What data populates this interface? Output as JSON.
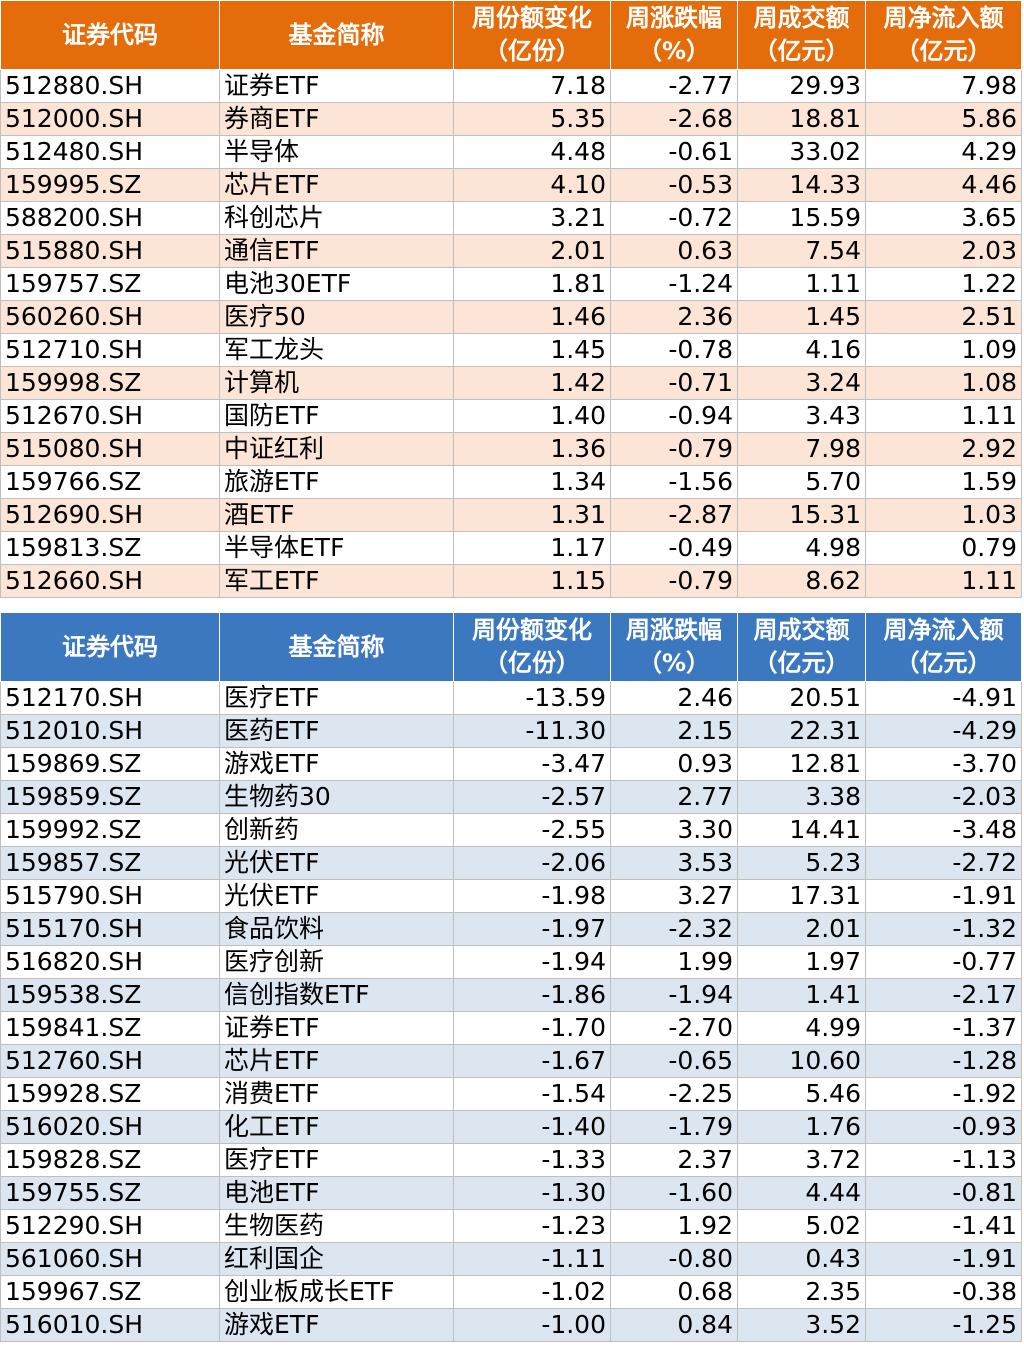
{
  "headers": [
    {
      "l1": "证券代码",
      "l2": ""
    },
    {
      "l1": "基金简称",
      "l2": ""
    },
    {
      "l1": "周份额变化",
      "l2": "（亿份）"
    },
    {
      "l1": "周涨跌幅",
      "l2": "（%）"
    },
    {
      "l1": "周成交额",
      "l2": "（亿元）"
    },
    {
      "l1": "周净流入额",
      "l2": "（亿元）"
    }
  ],
  "inflow_rows": [
    [
      "512880.SH",
      "证券ETF",
      "7.18",
      "-2.77",
      "29.93",
      "7.98"
    ],
    [
      "512000.SH",
      "券商ETF",
      "5.35",
      "-2.68",
      "18.81",
      "5.86"
    ],
    [
      "512480.SH",
      "半导体",
      "4.48",
      "-0.61",
      "33.02",
      "4.29"
    ],
    [
      "159995.SZ",
      "芯片ETF",
      "4.10",
      "-0.53",
      "14.33",
      "4.46"
    ],
    [
      "588200.SH",
      "科创芯片",
      "3.21",
      "-0.72",
      "15.59",
      "3.65"
    ],
    [
      "515880.SH",
      "通信ETF",
      "2.01",
      "0.63",
      "7.54",
      "2.03"
    ],
    [
      "159757.SZ",
      "电池30ETF",
      "1.81",
      "-1.24",
      "1.11",
      "1.22"
    ],
    [
      "560260.SH",
      "医疗50",
      "1.46",
      "2.36",
      "1.45",
      "2.51"
    ],
    [
      "512710.SH",
      "军工龙头",
      "1.45",
      "-0.78",
      "4.16",
      "1.09"
    ],
    [
      "159998.SZ",
      "计算机",
      "1.42",
      "-0.71",
      "3.24",
      "1.08"
    ],
    [
      "512670.SH",
      "国防ETF",
      "1.40",
      "-0.94",
      "3.43",
      "1.11"
    ],
    [
      "515080.SH",
      "中证红利",
      "1.36",
      "-0.79",
      "7.98",
      "2.92"
    ],
    [
      "159766.SZ",
      "旅游ETF",
      "1.34",
      "-1.56",
      "5.70",
      "1.59"
    ],
    [
      "512690.SH",
      "酒ETF",
      "1.31",
      "-2.87",
      "15.31",
      "1.03"
    ],
    [
      "159813.SZ",
      "半导体ETF",
      "1.17",
      "-0.49",
      "4.98",
      "0.79"
    ],
    [
      "512660.SH",
      "军工ETF",
      "1.15",
      "-0.79",
      "8.62",
      "1.11"
    ]
  ],
  "outflow_rows": [
    [
      "512170.SH",
      "医疗ETF",
      "-13.59",
      "2.46",
      "20.51",
      "-4.91"
    ],
    [
      "512010.SH",
      "医药ETF",
      "-11.30",
      "2.15",
      "22.31",
      "-4.29"
    ],
    [
      "159869.SZ",
      "游戏ETF",
      "-3.47",
      "0.93",
      "12.81",
      "-3.70"
    ],
    [
      "159859.SZ",
      "生物药30",
      "-2.57",
      "2.77",
      "3.38",
      "-2.03"
    ],
    [
      "159992.SZ",
      "创新药",
      "-2.55",
      "3.30",
      "14.41",
      "-3.48"
    ],
    [
      "159857.SZ",
      "光伏ETF",
      "-2.06",
      "3.53",
      "5.23",
      "-2.72"
    ],
    [
      "515790.SH",
      "光伏ETF",
      "-1.98",
      "3.27",
      "17.31",
      "-1.91"
    ],
    [
      "515170.SH",
      "食品饮料",
      "-1.97",
      "-2.32",
      "2.01",
      "-1.32"
    ],
    [
      "516820.SH",
      "医疗创新",
      "-1.94",
      "1.99",
      "1.97",
      "-0.77"
    ],
    [
      "159538.SZ",
      "信创指数ETF",
      "-1.86",
      "-1.94",
      "1.41",
      "-2.17"
    ],
    [
      "159841.SZ",
      "证券ETF",
      "-1.70",
      "-2.70",
      "4.99",
      "-1.37"
    ],
    [
      "512760.SH",
      "芯片ETF",
      "-1.67",
      "-0.65",
      "10.60",
      "-1.28"
    ],
    [
      "159928.SZ",
      "消费ETF",
      "-1.54",
      "-2.25",
      "5.46",
      "-1.92"
    ],
    [
      "516020.SH",
      "化工ETF",
      "-1.40",
      "-1.79",
      "1.76",
      "-0.93"
    ],
    [
      "159828.SZ",
      "医疗ETF",
      "-1.33",
      "2.37",
      "3.72",
      "-1.13"
    ],
    [
      "159755.SZ",
      "电池ETF",
      "-1.30",
      "-1.60",
      "4.44",
      "-0.81"
    ],
    [
      "512290.SH",
      "生物医药",
      "-1.23",
      "1.92",
      "5.02",
      "-1.41"
    ],
    [
      "561060.SH",
      "红利国企",
      "-1.11",
      "-0.80",
      "0.43",
      "-1.91"
    ],
    [
      "159967.SZ",
      "创业板成长ETF",
      "-1.02",
      "0.68",
      "2.35",
      "-0.38"
    ],
    [
      "516010.SH",
      "游戏ETF",
      "-1.00",
      "0.84",
      "3.52",
      "-1.25"
    ]
  ],
  "colors": {
    "inflow_header": "#e46c0a",
    "inflow_stripe": "#fce4d6",
    "outflow_header": "#3c78c0",
    "outflow_stripe": "#dce6f1"
  }
}
